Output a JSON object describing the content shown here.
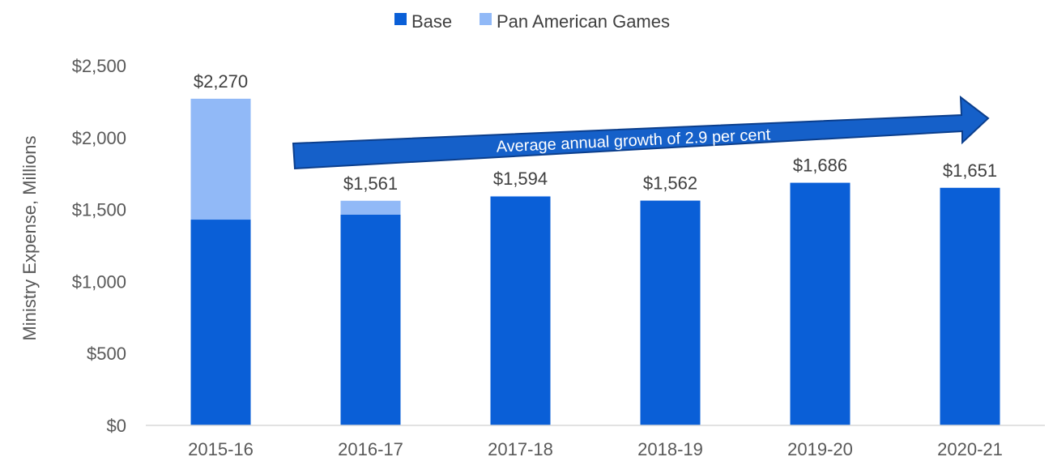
{
  "chart_data": {
    "type": "bar",
    "stacked": true,
    "categories": [
      "2015-16",
      "2016-17",
      "2017-18",
      "2018-19",
      "2019-20",
      "2020-21"
    ],
    "series": [
      {
        "name": "Base",
        "values": [
          1430,
          1465,
          1590,
          1562,
          1686,
          1651
        ],
        "color": "#0A5FD7"
      },
      {
        "name": "Pan American Games",
        "values": [
          840,
          96,
          4,
          0,
          0,
          0
        ],
        "color": "#91B9F7"
      }
    ],
    "totals": [
      "$2,270",
      "$1,561",
      "$1,594",
      "$1,562",
      "$1,686",
      "$1,651"
    ],
    "ylabel": "Ministry Expense, Millions",
    "ylim": [
      0,
      2500
    ],
    "yticks": [
      0,
      500,
      1000,
      1500,
      2000,
      2500
    ],
    "ytick_labels": [
      "$0",
      "$500",
      "$1,000",
      "$1,500",
      "$2,000",
      "$2,500"
    ],
    "legend_position": "top",
    "grid": false,
    "annotation": "Average annual growth of 2.9 per cent"
  }
}
